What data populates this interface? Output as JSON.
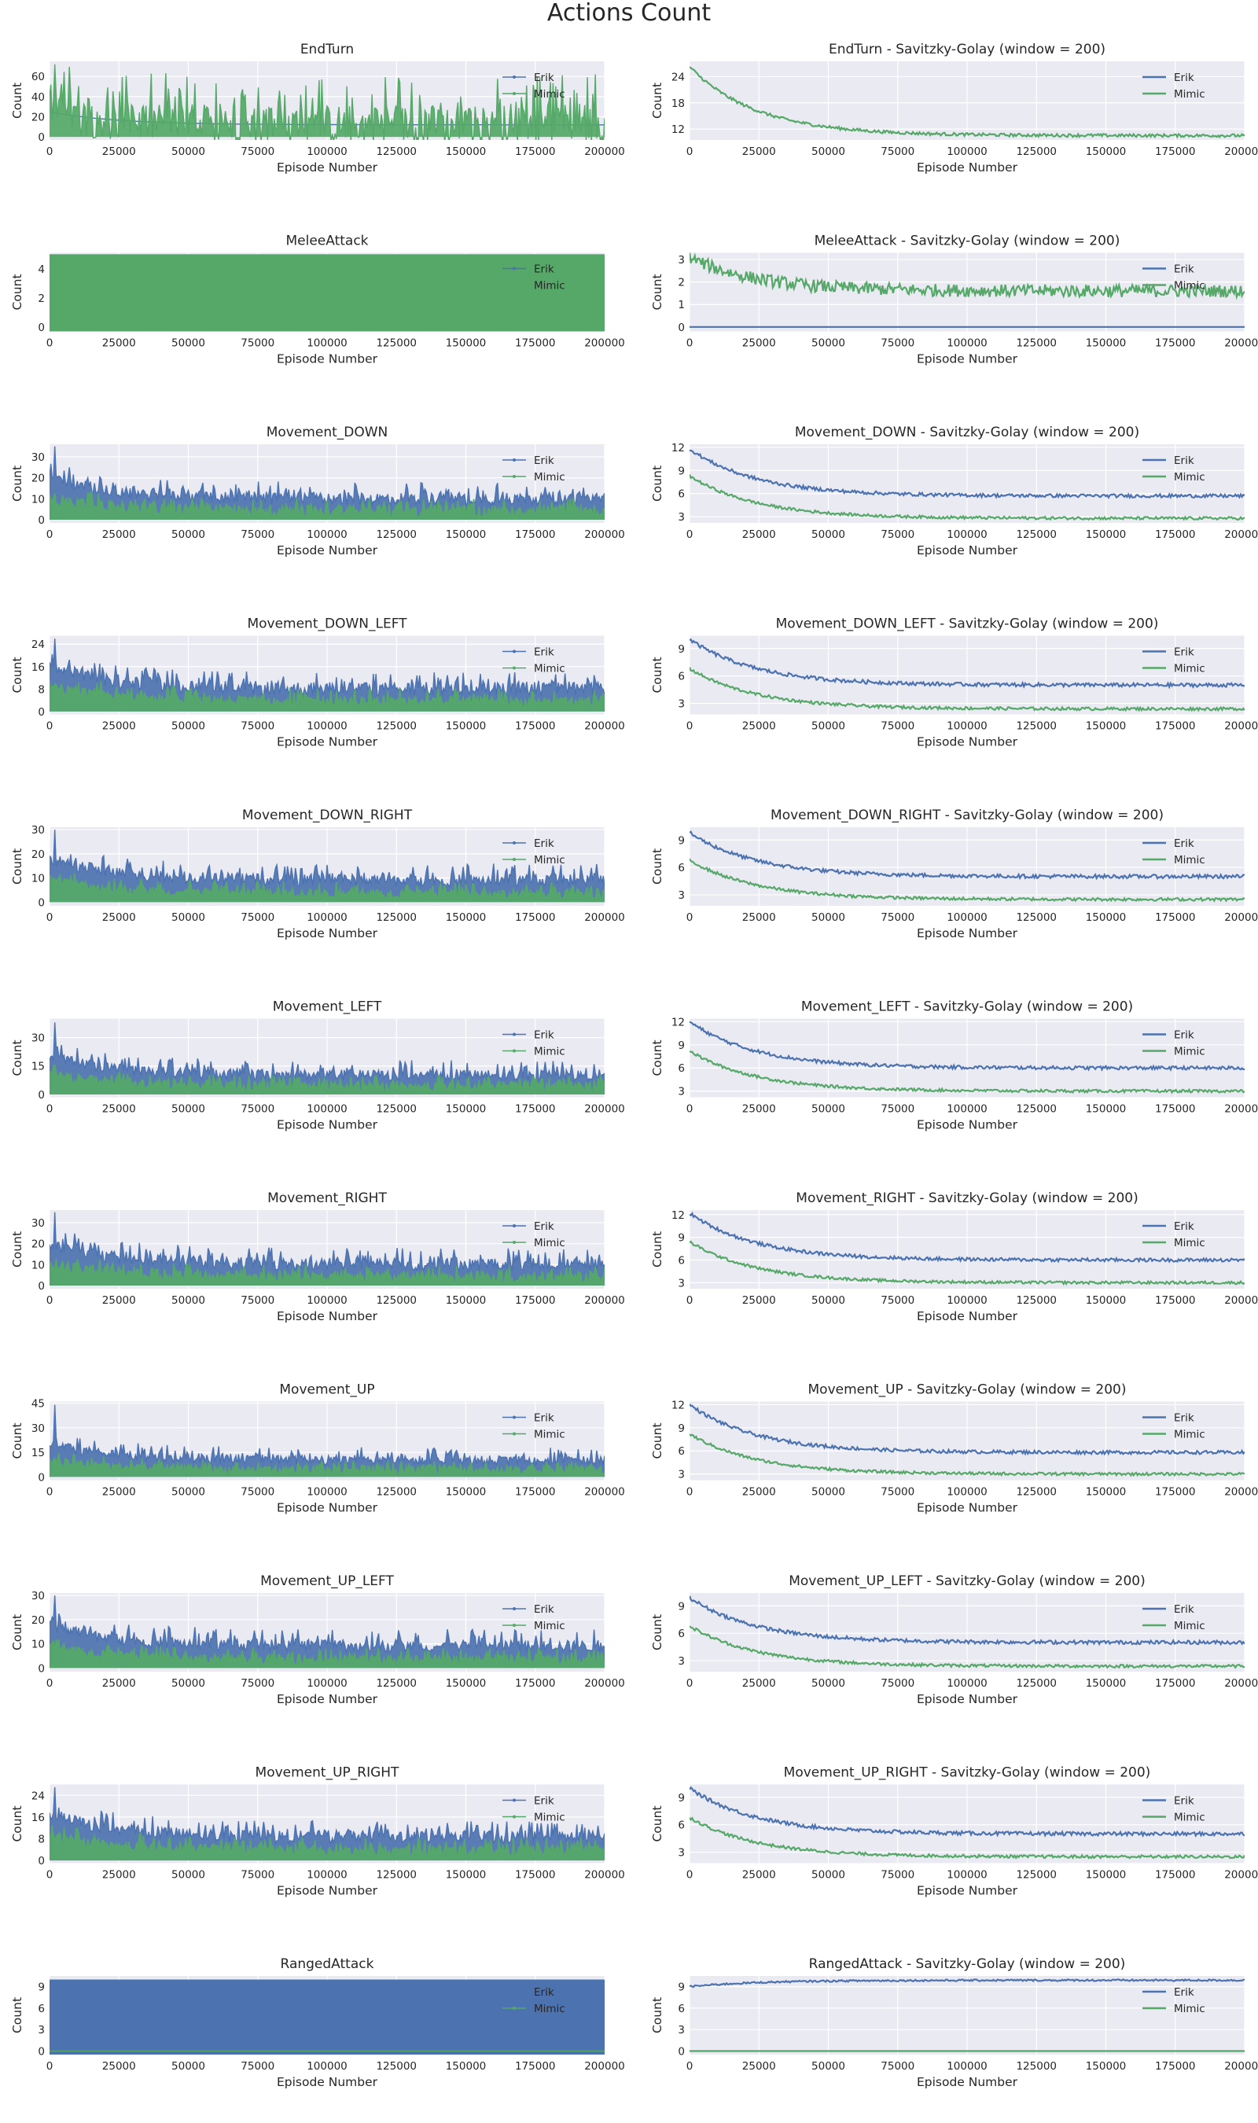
{
  "suptitle": "Actions Count",
  "colors": {
    "erik": "#4C72B0",
    "mimic": "#55A868",
    "axes_bg": "#EAEAF2",
    "grid": "#FFFFFF",
    "text": "#262626"
  },
  "legend": [
    "Erik",
    "Mimic"
  ],
  "x_ticks": [
    0,
    25000,
    50000,
    75000,
    100000,
    125000,
    150000,
    175000,
    200000
  ],
  "xlabel": "Episode Number",
  "ylabel": "Count",
  "smoothed_title_suffix": " - Savitzky-Golay (window = 200)",
  "chart_data": [
    {
      "type": "line",
      "title": "EndTurn",
      "column": "raw",
      "xlim": [
        0,
        200000
      ],
      "ylim": [
        -3,
        75
      ],
      "yticks": [
        0,
        20,
        40,
        60
      ],
      "series": [
        {
          "name": "Erik",
          "start": 25,
          "end": 12,
          "spike": 0,
          "noise": 0,
          "peak": 0
        },
        {
          "name": "Mimic",
          "start": 25,
          "end": 12,
          "spike": 50,
          "noise": 20,
          "peak": 72
        }
      ]
    },
    {
      "type": "line",
      "title": "EndTurn - Savitzky-Golay (window = 200)",
      "column": "smooth",
      "xlim": [
        0,
        200000
      ],
      "ylim": [
        9.5,
        27.5
      ],
      "yticks": [
        12,
        18,
        24
      ],
      "series": [
        {
          "name": "Erik",
          "start": 26.3,
          "end": 10.5,
          "noise": 0,
          "hide": true
        },
        {
          "name": "Mimic",
          "start": 26.3,
          "end": 10.5,
          "noise": 0.35
        }
      ]
    },
    {
      "type": "line",
      "title": "MeleeAttack",
      "column": "raw",
      "xlim": [
        0,
        200000
      ],
      "ylim": [
        -0.3,
        5.1
      ],
      "yticks": [
        0,
        2,
        4
      ],
      "series": [
        {
          "name": "Erik",
          "start": 0,
          "end": 0,
          "spike": 0,
          "noise": 0
        },
        {
          "name": "Mimic",
          "start": 5,
          "end": 5,
          "fill": true
        }
      ]
    },
    {
      "type": "line",
      "title": "MeleeAttack - Savitzky-Golay (window = 200)",
      "column": "smooth",
      "xlim": [
        0,
        200000
      ],
      "ylim": [
        -0.2,
        3.3
      ],
      "yticks": [
        0,
        1,
        2,
        3
      ],
      "series": [
        {
          "name": "Erik",
          "start": 0,
          "end": 0,
          "noise": 0
        },
        {
          "name": "Mimic",
          "start": 3.1,
          "end": 1.6,
          "noise": 0.28
        }
      ]
    },
    {
      "type": "line",
      "title": "Movement_DOWN",
      "column": "raw",
      "xlim": [
        0,
        200000
      ],
      "ylim": [
        -1.5,
        36
      ],
      "yticks": [
        0,
        10,
        20,
        30
      ],
      "series": [
        {
          "name": "Erik",
          "start": 20,
          "end": 10,
          "spike": 8,
          "noise": 3,
          "peak": 35
        },
        {
          "name": "Mimic",
          "start": 10,
          "end": 4,
          "spike": 6,
          "noise": 3
        }
      ]
    },
    {
      "type": "line",
      "title": "Movement_DOWN - Savitzky-Golay (window = 200)",
      "column": "smooth",
      "xlim": [
        0,
        200000
      ],
      "ylim": [
        2.2,
        12.4
      ],
      "yticks": [
        3,
        6,
        9,
        12
      ],
      "series": [
        {
          "name": "Erik",
          "start": 11.8,
          "end": 5.7,
          "noise": 0.22
        },
        {
          "name": "Mimic",
          "start": 8.3,
          "end": 2.8,
          "noise": 0.18
        }
      ]
    },
    {
      "type": "line",
      "title": "Movement_DOWN_LEFT",
      "column": "raw",
      "xlim": [
        0,
        200000
      ],
      "ylim": [
        -1,
        27
      ],
      "yticks": [
        0,
        8,
        16,
        24
      ],
      "series": [
        {
          "name": "Erik",
          "start": 16,
          "end": 8,
          "spike": 6,
          "noise": 2.5,
          "peak": 26
        },
        {
          "name": "Mimic",
          "start": 9,
          "end": 3.5,
          "spike": 5,
          "noise": 2
        }
      ]
    },
    {
      "type": "line",
      "title": "Movement_DOWN_LEFT - Savitzky-Golay (window = 200)",
      "column": "smooth",
      "xlim": [
        0,
        200000
      ],
      "ylim": [
        1.8,
        10.4
      ],
      "yticks": [
        3,
        6,
        9
      ],
      "series": [
        {
          "name": "Erik",
          "start": 10,
          "end": 5,
          "noise": 0.2
        },
        {
          "name": "Mimic",
          "start": 6.8,
          "end": 2.4,
          "noise": 0.16
        }
      ]
    },
    {
      "type": "line",
      "title": "Movement_DOWN_RIGHT",
      "column": "raw",
      "xlim": [
        0,
        200000
      ],
      "ylim": [
        -1.5,
        31
      ],
      "yticks": [
        0,
        10,
        20,
        30
      ],
      "series": [
        {
          "name": "Erik",
          "start": 18,
          "end": 9,
          "spike": 7,
          "noise": 2.5,
          "peak": 30
        },
        {
          "name": "Mimic",
          "start": 9,
          "end": 3.5,
          "spike": 5,
          "noise": 2
        }
      ]
    },
    {
      "type": "line",
      "title": "Movement_DOWN_RIGHT - Savitzky-Golay (window = 200)",
      "column": "smooth",
      "xlim": [
        0,
        200000
      ],
      "ylim": [
        1.8,
        10.4
      ],
      "yticks": [
        3,
        6,
        9
      ],
      "series": [
        {
          "name": "Erik",
          "start": 9.8,
          "end": 5,
          "noise": 0.2
        },
        {
          "name": "Mimic",
          "start": 6.8,
          "end": 2.5,
          "noise": 0.16
        }
      ]
    },
    {
      "type": "line",
      "title": "Movement_LEFT",
      "column": "raw",
      "xlim": [
        0,
        200000
      ],
      "ylim": [
        -1.5,
        40
      ],
      "yticks": [
        0,
        15,
        30
      ],
      "series": [
        {
          "name": "Erik",
          "start": 20,
          "end": 10,
          "spike": 8,
          "noise": 3,
          "peak": 38
        },
        {
          "name": "Mimic",
          "start": 10,
          "end": 4,
          "spike": 6,
          "noise": 3
        }
      ]
    },
    {
      "type": "line",
      "title": "Movement_LEFT - Savitzky-Golay (window = 200)",
      "column": "smooth",
      "xlim": [
        0,
        200000
      ],
      "ylim": [
        2.2,
        12.4
      ],
      "yticks": [
        3,
        6,
        9,
        12
      ],
      "series": [
        {
          "name": "Erik",
          "start": 12,
          "end": 6,
          "noise": 0.22
        },
        {
          "name": "Mimic",
          "start": 8.2,
          "end": 3,
          "noise": 0.18
        }
      ]
    },
    {
      "type": "line",
      "title": "Movement_RIGHT",
      "column": "raw",
      "xlim": [
        0,
        200000
      ],
      "ylim": [
        -1.5,
        36
      ],
      "yticks": [
        0,
        10,
        20,
        30
      ],
      "series": [
        {
          "name": "Erik",
          "start": 20,
          "end": 10,
          "spike": 8,
          "noise": 3,
          "peak": 35
        },
        {
          "name": "Mimic",
          "start": 10,
          "end": 4,
          "spike": 6,
          "noise": 3
        }
      ]
    },
    {
      "type": "line",
      "title": "Movement_RIGHT - Savitzky-Golay (window = 200)",
      "column": "smooth",
      "xlim": [
        0,
        200000
      ],
      "ylim": [
        2.2,
        12.6
      ],
      "yticks": [
        3,
        6,
        9,
        12
      ],
      "series": [
        {
          "name": "Erik",
          "start": 12.2,
          "end": 6,
          "noise": 0.22
        },
        {
          "name": "Mimic",
          "start": 8.4,
          "end": 3,
          "noise": 0.18
        }
      ]
    },
    {
      "type": "line",
      "title": "Movement_UP",
      "column": "raw",
      "xlim": [
        0,
        200000
      ],
      "ylim": [
        -2,
        46
      ],
      "yticks": [
        0,
        15,
        30,
        45
      ],
      "series": [
        {
          "name": "Erik",
          "start": 20,
          "end": 10,
          "spike": 8,
          "noise": 3,
          "peak": 44
        },
        {
          "name": "Mimic",
          "start": 10,
          "end": 4,
          "spike": 6,
          "noise": 3
        }
      ]
    },
    {
      "type": "line",
      "title": "Movement_UP - Savitzky-Golay (window = 200)",
      "column": "smooth",
      "xlim": [
        0,
        200000
      ],
      "ylim": [
        2.2,
        12.4
      ],
      "yticks": [
        3,
        6,
        9,
        12
      ],
      "series": [
        {
          "name": "Erik",
          "start": 12,
          "end": 5.8,
          "noise": 0.22
        },
        {
          "name": "Mimic",
          "start": 8.2,
          "end": 3,
          "noise": 0.18
        }
      ]
    },
    {
      "type": "line",
      "title": "Movement_UP_LEFT",
      "column": "raw",
      "xlim": [
        0,
        200000
      ],
      "ylim": [
        -1.5,
        31
      ],
      "yticks": [
        0,
        10,
        20,
        30
      ],
      "series": [
        {
          "name": "Erik",
          "start": 18,
          "end": 9,
          "spike": 7,
          "noise": 2.5,
          "peak": 30
        },
        {
          "name": "Mimic",
          "start": 9,
          "end": 3.5,
          "spike": 5,
          "noise": 2
        }
      ]
    },
    {
      "type": "line",
      "title": "Movement_UP_LEFT - Savitzky-Golay (window = 200)",
      "column": "smooth",
      "xlim": [
        0,
        200000
      ],
      "ylim": [
        1.8,
        10.4
      ],
      "yticks": [
        3,
        6,
        9
      ],
      "series": [
        {
          "name": "Erik",
          "start": 9.9,
          "end": 5,
          "noise": 0.2
        },
        {
          "name": "Mimic",
          "start": 6.8,
          "end": 2.4,
          "noise": 0.16
        }
      ]
    },
    {
      "type": "line",
      "title": "Movement_UP_RIGHT",
      "column": "raw",
      "xlim": [
        0,
        200000
      ],
      "ylim": [
        -1,
        28
      ],
      "yticks": [
        0,
        8,
        16,
        24
      ],
      "series": [
        {
          "name": "Erik",
          "start": 17,
          "end": 8.5,
          "spike": 6,
          "noise": 2.5,
          "peak": 27
        },
        {
          "name": "Mimic",
          "start": 9,
          "end": 3.5,
          "spike": 5,
          "noise": 2
        }
      ]
    },
    {
      "type": "line",
      "title": "Movement_UP_RIGHT - Savitzky-Golay (window = 200)",
      "column": "smooth",
      "xlim": [
        0,
        200000
      ],
      "ylim": [
        1.8,
        10.4
      ],
      "yticks": [
        3,
        6,
        9
      ],
      "series": [
        {
          "name": "Erik",
          "start": 10,
          "end": 5,
          "noise": 0.2
        },
        {
          "name": "Mimic",
          "start": 6.8,
          "end": 2.5,
          "noise": 0.16
        }
      ]
    },
    {
      "type": "line",
      "title": "RangedAttack",
      "column": "raw",
      "xlim": [
        0,
        200000
      ],
      "ylim": [
        -0.5,
        10.5
      ],
      "yticks": [
        0,
        3,
        6,
        9
      ],
      "series": [
        {
          "name": "Erik",
          "start": 10,
          "end": 10,
          "fill": true
        },
        {
          "name": "Mimic",
          "start": 0,
          "end": 0,
          "spike": 0,
          "noise": 0
        }
      ]
    },
    {
      "type": "line",
      "title": "RangedAttack - Savitzky-Golay (window = 200)",
      "column": "smooth",
      "xlim": [
        0,
        200000
      ],
      "ylim": [
        -0.5,
        10.5
      ],
      "yticks": [
        0,
        3,
        6,
        9
      ],
      "series": [
        {
          "name": "Erik",
          "start": 9,
          "end": 9.9,
          "noise": 0.12
        },
        {
          "name": "Mimic",
          "start": 0,
          "end": 0,
          "noise": 0
        }
      ]
    }
  ]
}
